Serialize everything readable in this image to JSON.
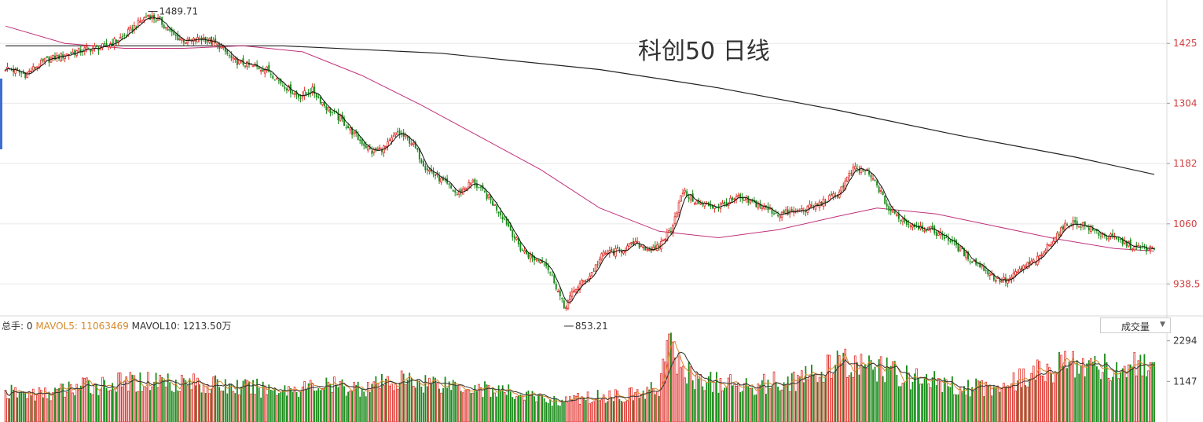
{
  "title": "科创50 日线",
  "colors": {
    "up": "#e0312b",
    "down": "#1a8a1a",
    "ma5": "#111111",
    "ma60": "#c0307a",
    "ma250": "#222222",
    "vol_ma5": "#d58a2a",
    "vol_ma10": "#333333",
    "axis_text": "#d04040",
    "grid": "#e8e8e8"
  },
  "volume_info": {
    "total_label": "总手: 0",
    "mavol5_label": "MAVOL5: 11063469",
    "mavol10_label": "MAVOL10: 1213.50万"
  },
  "volume_selector": {
    "value": "成交量"
  },
  "chart_data": {
    "type": "candlestick",
    "price_axis": {
      "ticks": [
        "1425",
        "1304",
        "1182",
        "1060",
        "938.5"
      ],
      "tick_values": [
        1425,
        1304,
        1182,
        1060,
        938.5
      ],
      "range": [
        877,
        1500
      ]
    },
    "volume_axis": {
      "ticks": [
        "2294",
        "1147"
      ],
      "tick_values": [
        2294,
        1147
      ],
      "range": [
        0,
        2420
      ]
    },
    "annotations": [
      {
        "label": "1489.71",
        "value": 1489.71,
        "type": "high"
      },
      {
        "label": "853.21",
        "value": 853.21,
        "type": "low"
      }
    ],
    "ma250": [
      [
        0,
        1420
      ],
      [
        60,
        1420
      ],
      [
        140,
        1420
      ],
      [
        220,
        1405
      ],
      [
        300,
        1372
      ],
      [
        360,
        1335
      ],
      [
        420,
        1290
      ],
      [
        480,
        1240
      ],
      [
        540,
        1195
      ],
      [
        580,
        1160
      ]
    ],
    "close_anchors": [
      [
        0,
        1375
      ],
      [
        10,
        1362
      ],
      [
        20,
        1390
      ],
      [
        30,
        1402
      ],
      [
        40,
        1412
      ],
      [
        50,
        1418
      ],
      [
        60,
        1440
      ],
      [
        66,
        1462
      ],
      [
        72,
        1482
      ],
      [
        78,
        1470
      ],
      [
        85,
        1440
      ],
      [
        92,
        1428
      ],
      [
        100,
        1435
      ],
      [
        108,
        1420
      ],
      [
        115,
        1390
      ],
      [
        125,
        1378
      ],
      [
        132,
        1372
      ],
      [
        140,
        1342
      ],
      [
        148,
        1318
      ],
      [
        155,
        1330
      ],
      [
        162,
        1295
      ],
      [
        170,
        1268
      ],
      [
        178,
        1232
      ],
      [
        185,
        1205
      ],
      [
        192,
        1215
      ],
      [
        198,
        1245
      ],
      [
        205,
        1225
      ],
      [
        212,
        1175
      ],
      [
        220,
        1148
      ],
      [
        228,
        1120
      ],
      [
        236,
        1145
      ],
      [
        244,
        1112
      ],
      [
        252,
        1070
      ],
      [
        260,
        1010
      ],
      [
        266,
        990
      ],
      [
        272,
        985
      ],
      [
        277,
        945
      ],
      [
        282,
        890
      ],
      [
        288,
        930
      ],
      [
        295,
        955
      ],
      [
        302,
        1000
      ],
      [
        310,
        1005
      ],
      [
        318,
        1020
      ],
      [
        328,
        1005
      ],
      [
        336,
        1050
      ],
      [
        342,
        1125
      ],
      [
        350,
        1100
      ],
      [
        360,
        1095
      ],
      [
        370,
        1112
      ],
      [
        380,
        1098
      ],
      [
        390,
        1080
      ],
      [
        400,
        1085
      ],
      [
        410,
        1098
      ],
      [
        420,
        1120
      ],
      [
        428,
        1170
      ],
      [
        434,
        1168
      ],
      [
        440,
        1138
      ],
      [
        446,
        1088
      ],
      [
        456,
        1060
      ],
      [
        466,
        1050
      ],
      [
        476,
        1030
      ],
      [
        486,
        992
      ],
      [
        494,
        970
      ],
      [
        500,
        948
      ],
      [
        506,
        945
      ],
      [
        514,
        972
      ],
      [
        522,
        990
      ],
      [
        530,
        1035
      ],
      [
        537,
        1062
      ],
      [
        544,
        1058
      ],
      [
        552,
        1040
      ],
      [
        560,
        1030
      ],
      [
        570,
        1012
      ],
      [
        580,
        1008
      ]
    ],
    "ma60": [
      [
        0,
        1460
      ],
      [
        30,
        1425
      ],
      [
        60,
        1415
      ],
      [
        90,
        1415
      ],
      [
        120,
        1420
      ],
      [
        150,
        1408
      ],
      [
        180,
        1360
      ],
      [
        210,
        1300
      ],
      [
        240,
        1235
      ],
      [
        270,
        1170
      ],
      [
        300,
        1092
      ],
      [
        330,
        1045
      ],
      [
        360,
        1032
      ],
      [
        390,
        1048
      ],
      [
        420,
        1075
      ],
      [
        440,
        1092
      ],
      [
        470,
        1080
      ],
      [
        500,
        1055
      ],
      [
        530,
        1030
      ],
      [
        560,
        1010
      ],
      [
        580,
        1005
      ]
    ],
    "volume_anchors": [
      [
        0,
        850
      ],
      [
        20,
        800
      ],
      [
        40,
        1050
      ],
      [
        60,
        1130
      ],
      [
        80,
        1220
      ],
      [
        100,
        1100
      ],
      [
        120,
        1000
      ],
      [
        140,
        950
      ],
      [
        160,
        1050
      ],
      [
        180,
        1000
      ],
      [
        200,
        1200
      ],
      [
        220,
        1150
      ],
      [
        240,
        980
      ],
      [
        260,
        800
      ],
      [
        280,
        600
      ],
      [
        300,
        750
      ],
      [
        320,
        800
      ],
      [
        330,
        1000
      ],
      [
        334,
        2300
      ],
      [
        340,
        1650
      ],
      [
        350,
        1200
      ],
      [
        370,
        1050
      ],
      [
        390,
        1150
      ],
      [
        410,
        1350
      ],
      [
        420,
        1700
      ],
      [
        440,
        1550
      ],
      [
        460,
        1250
      ],
      [
        480,
        1050
      ],
      [
        500,
        1000
      ],
      [
        520,
        1400
      ],
      [
        540,
        1750
      ],
      [
        560,
        1550
      ],
      [
        575,
        1600
      ],
      [
        580,
        1350
      ]
    ]
  }
}
